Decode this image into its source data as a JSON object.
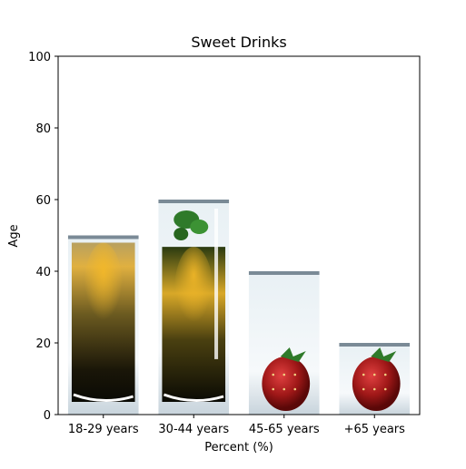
{
  "chart_data": {
    "type": "bar",
    "title": "Sweet Drinks",
    "xlabel": "Percent (%)",
    "ylabel": "Age",
    "categories": [
      "18-29 years",
      "30-44 years",
      "45-65 years",
      "+65 years"
    ],
    "values": [
      50,
      60,
      40,
      20
    ],
    "ylim": [
      0,
      100
    ],
    "yticks": [
      0,
      20,
      40,
      60,
      80,
      100
    ],
    "grid": false,
    "bar_fills": [
      "dark-drink-glass",
      "drink-glass-with-mint",
      "strawberry-glass",
      "strawberry-glass"
    ]
  }
}
